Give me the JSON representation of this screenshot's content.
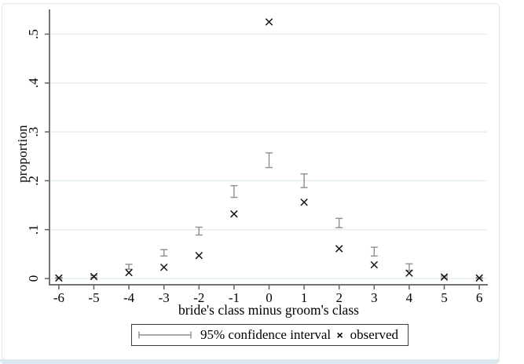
{
  "chart_data": {
    "type": "scatter",
    "title": "",
    "xlabel": "bride's class minus groom's class",
    "ylabel": "proportion",
    "x": [
      -6,
      -5,
      -4,
      -3,
      -2,
      -1,
      0,
      1,
      2,
      3,
      4,
      5,
      6
    ],
    "series": [
      {
        "name": "95% confidence interval",
        "style": "error_bar",
        "low": [
          0.0,
          0.002,
          0.019,
          0.046,
          0.089,
          0.166,
          0.227,
          0.186,
          0.104,
          0.046,
          0.016,
          0.001,
          0.0
        ],
        "high": [
          0.002,
          0.006,
          0.029,
          0.059,
          0.105,
          0.19,
          0.257,
          0.214,
          0.123,
          0.064,
          0.03,
          0.005,
          0.002
        ]
      },
      {
        "name": "observed",
        "style": "x_marker",
        "values": [
          0.001,
          0.004,
          0.012,
          0.023,
          0.047,
          0.132,
          0.525,
          0.156,
          0.061,
          0.028,
          0.011,
          0.003,
          0.001
        ]
      }
    ],
    "xticks": [
      -6,
      -5,
      -4,
      -3,
      -2,
      -1,
      0,
      1,
      2,
      3,
      4,
      5,
      6
    ],
    "xtick_labels": [
      "-6",
      "-5",
      "-4",
      "-3",
      "-2",
      "-1",
      "0",
      "1",
      "2",
      "3",
      "4",
      "5",
      "6"
    ],
    "yticks": [
      0,
      0.1,
      0.2,
      0.3,
      0.4,
      0.5
    ],
    "ytick_labels": [
      "0",
      ".1",
      ".2",
      ".3",
      ".4",
      ".5"
    ],
    "ylim": [
      0,
      0.55
    ],
    "xlim": [
      -6.6,
      6.6
    ],
    "grid": true,
    "legend_position": "bottom"
  },
  "legend": {
    "ci_label": "95% confidence interval",
    "observed_label": "observed",
    "marker_glyph": "×"
  },
  "colors": {
    "ci": "#8e8e8e",
    "marker": "#141414",
    "axis": "#5f5f5f",
    "grid": "#e2eef2",
    "text": "#000000",
    "border": "#dfe6ea",
    "bottom_strip": "#dce8ef"
  }
}
